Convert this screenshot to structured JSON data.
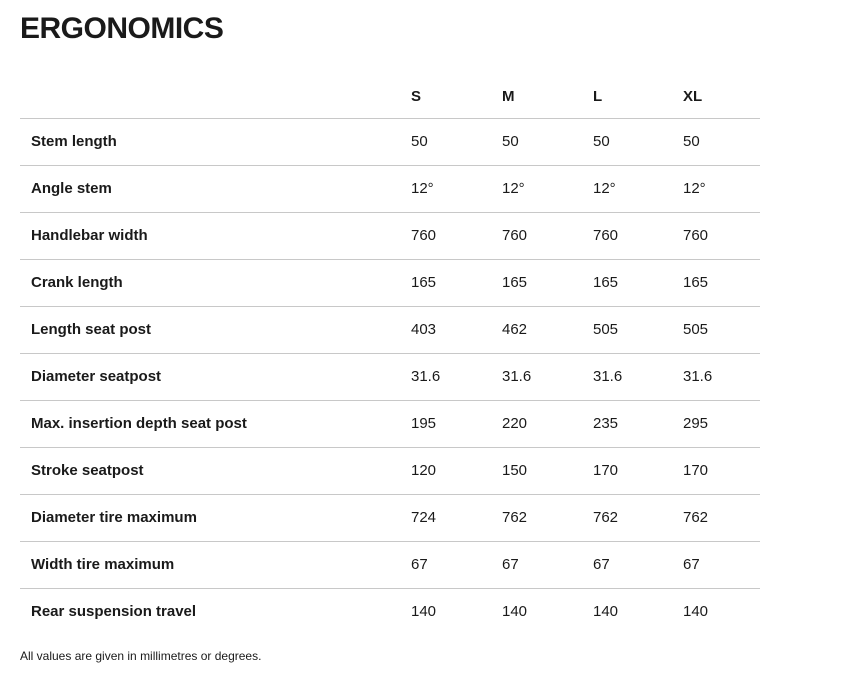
{
  "page": {
    "title": "ERGONOMICS",
    "footnote": "All values are given in millimetres or degrees."
  },
  "table": {
    "columns": [
      "S",
      "M",
      "L",
      "XL"
    ],
    "rows": [
      {
        "label": "Stem length",
        "values": [
          "50",
          "50",
          "50",
          "50"
        ]
      },
      {
        "label": "Angle stem",
        "values": [
          "12°",
          "12°",
          "12°",
          "12°"
        ]
      },
      {
        "label": "Handlebar width",
        "values": [
          "760",
          "760",
          "760",
          "760"
        ]
      },
      {
        "label": "Crank length",
        "values": [
          "165",
          "165",
          "165",
          "165"
        ]
      },
      {
        "label": "Length seat post",
        "values": [
          "403",
          "462",
          "505",
          "505"
        ]
      },
      {
        "label": "Diameter seatpost",
        "values": [
          "31.6",
          "31.6",
          "31.6",
          "31.6"
        ]
      },
      {
        "label": "Max. insertion depth seat post",
        "values": [
          "195",
          "220",
          "235",
          "295"
        ]
      },
      {
        "label": "Stroke seatpost",
        "values": [
          "120",
          "150",
          "170",
          "170"
        ]
      },
      {
        "label": "Diameter tire maximum",
        "values": [
          "724",
          "762",
          "762",
          "762"
        ]
      },
      {
        "label": "Width tire maximum",
        "values": [
          "67",
          "67",
          "67",
          "67"
        ]
      },
      {
        "label": "Rear suspension travel",
        "values": [
          "140",
          "140",
          "140",
          "140"
        ]
      }
    ]
  },
  "colors": {
    "text": "#1a1a1a",
    "divider": "#c8c8c8"
  }
}
